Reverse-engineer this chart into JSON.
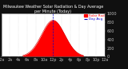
{
  "title": "Milwaukee Weather Solar Radiation & Day Average per Minute (Today)",
  "bg_color": "#101010",
  "plot_bg_color": "#ffffff",
  "fill_color": "#ff0000",
  "line_color": "#cc0000",
  "avg_line_color": "#0000cc",
  "grid_color": "#aaaaaa",
  "title_color": "#ffffff",
  "xlabel_color": "#c0c0c0",
  "ylabel_color": "#c0c0c0",
  "ylim": [
    0,
    1000
  ],
  "xlim": [
    0,
    1440
  ],
  "x_ticks": [
    0,
    120,
    240,
    360,
    480,
    600,
    720,
    840,
    960,
    1080,
    1200,
    1320,
    1440
  ],
  "x_tick_labels": [
    "12a",
    "2a",
    "4a",
    "6a",
    "8a",
    "10a",
    "12p",
    "2p",
    "4p",
    "6p",
    "8p",
    "10p",
    "12a"
  ],
  "y_ticks": [
    0,
    200,
    400,
    600,
    800,
    1000
  ],
  "y_tick_labels": [
    "0",
    "200",
    "400",
    "600",
    "800",
    "1000"
  ],
  "peak_time": 720,
  "peak_value": 850,
  "sigma": 160,
  "rise_time": 300,
  "set_time": 1140,
  "avg_line_x": 720,
  "font_size": 3.5,
  "title_font_size": 3.5,
  "legend_solar": "Solar Rad",
  "legend_avg": "Day Avg"
}
